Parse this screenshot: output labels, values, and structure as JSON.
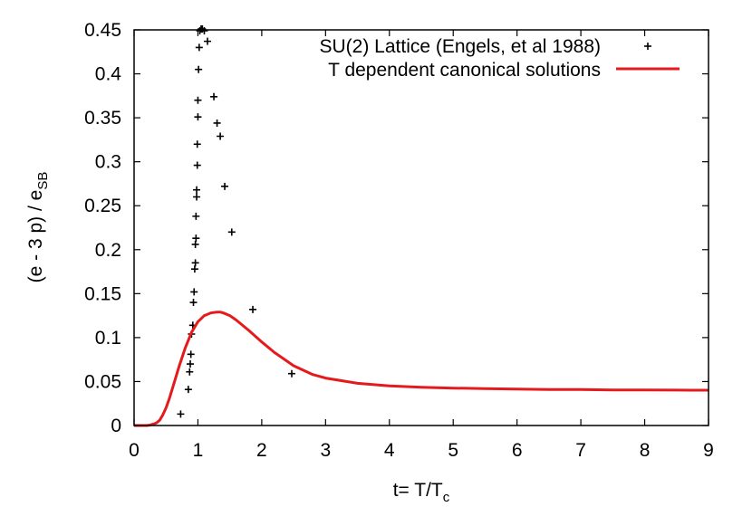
{
  "chart_data": {
    "type": "scatter",
    "title": "",
    "xlabel": "t= T/T",
    "xlabel_sub": "c",
    "ylabel": "(e - 3 p) / e",
    "ylabel_sub": "SB",
    "xlim": [
      0,
      9
    ],
    "ylim": [
      0,
      0.45
    ],
    "x_ticks": [
      "0",
      "1",
      "2",
      "3",
      "4",
      "5",
      "6",
      "7",
      "8",
      "9"
    ],
    "y_ticks": [
      "0",
      "0.05",
      "0.1",
      "0.15",
      "0.2",
      "0.25",
      "0.3",
      "0.35",
      "0.4",
      "0.45"
    ],
    "grid": false,
    "legend_position": "top-right",
    "series": [
      {
        "name": "SU(2) Lattice (Engels, et al 1988)",
        "kind": "points",
        "marker": "plus",
        "color": "#000000",
        "x": [
          0.73,
          0.85,
          0.87,
          0.88,
          0.89,
          0.9,
          0.92,
          0.93,
          0.94,
          0.95,
          0.96,
          0.96,
          0.97,
          0.97,
          0.98,
          0.98,
          0.99,
          0.99,
          1.0,
          1.0,
          1.01,
          1.02,
          1.03,
          1.05,
          1.07,
          1.1,
          1.15,
          1.25,
          1.3,
          1.35,
          1.42,
          1.53,
          1.86,
          2.47
        ],
        "y": [
          0.013,
          0.041,
          0.061,
          0.07,
          0.081,
          0.104,
          0.114,
          0.14,
          0.152,
          0.178,
          0.185,
          0.206,
          0.213,
          0.238,
          0.26,
          0.268,
          0.296,
          0.32,
          0.351,
          0.37,
          0.405,
          0.43,
          0.449,
          0.451,
          0.451,
          0.449,
          0.437,
          0.374,
          0.344,
          0.329,
          0.272,
          0.22,
          0.132,
          0.059
        ]
      },
      {
        "name": "T dependent canonical solutions",
        "kind": "line",
        "color": "#e41a1c",
        "x": [
          0.0,
          0.2,
          0.25,
          0.3,
          0.35,
          0.4,
          0.45,
          0.5,
          0.55,
          0.6,
          0.7,
          0.8,
          0.9,
          1.0,
          1.1,
          1.2,
          1.3,
          1.35,
          1.4,
          1.5,
          1.6,
          1.8,
          2.0,
          2.2,
          2.5,
          2.8,
          3.0,
          3.5,
          4.0,
          4.5,
          5.0,
          5.5,
          6.0,
          6.5,
          7.0,
          7.5,
          8.0,
          8.5,
          9.0
        ],
        "y": [
          0.0,
          0.0,
          0.0005,
          0.0015,
          0.003,
          0.006,
          0.012,
          0.02,
          0.03,
          0.042,
          0.066,
          0.088,
          0.106,
          0.118,
          0.125,
          0.128,
          0.129,
          0.129,
          0.128,
          0.125,
          0.12,
          0.108,
          0.095,
          0.083,
          0.068,
          0.058,
          0.054,
          0.048,
          0.045,
          0.0435,
          0.0425,
          0.042,
          0.0415,
          0.041,
          0.041,
          0.0405,
          0.0405,
          0.0403,
          0.0402
        ]
      }
    ]
  }
}
